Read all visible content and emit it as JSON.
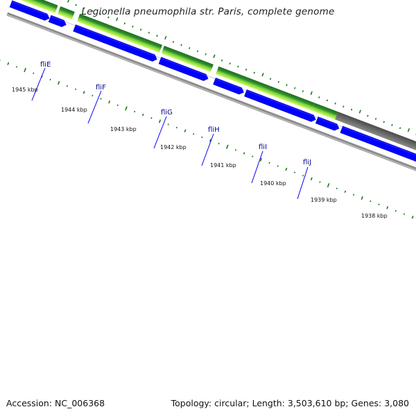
{
  "title": "Legionella pneumophila str. Paris, complete genome",
  "footer": {
    "accession": "Accession: NC_006368",
    "summary": "Topology: circular; Length: 3,503,610 bp; Genes: 3,080"
  },
  "colors": {
    "cds": "#0000ff",
    "track_green": "#2e8b2e",
    "track_light_green": "#b4ff50",
    "track_gray": "#606060",
    "backbone": "#8c8c8c",
    "gc_marks": "#1a7a1a",
    "label": "#00008b"
  },
  "ticks": [
    {
      "label": "1945 kbp"
    },
    {
      "label": "1944 kbp"
    },
    {
      "label": "1943 kbp"
    },
    {
      "label": "1942 kbp"
    },
    {
      "label": "1941 kbp"
    },
    {
      "label": "1940 kbp"
    },
    {
      "label": "1939 kbp"
    },
    {
      "label": "1938 kbp"
    }
  ],
  "genes": [
    {
      "name": "fliE"
    },
    {
      "name": "fliF"
    },
    {
      "name": "fliG"
    },
    {
      "name": "fliH"
    },
    {
      "name": "fliI"
    },
    {
      "name": "fliJ"
    }
  ]
}
